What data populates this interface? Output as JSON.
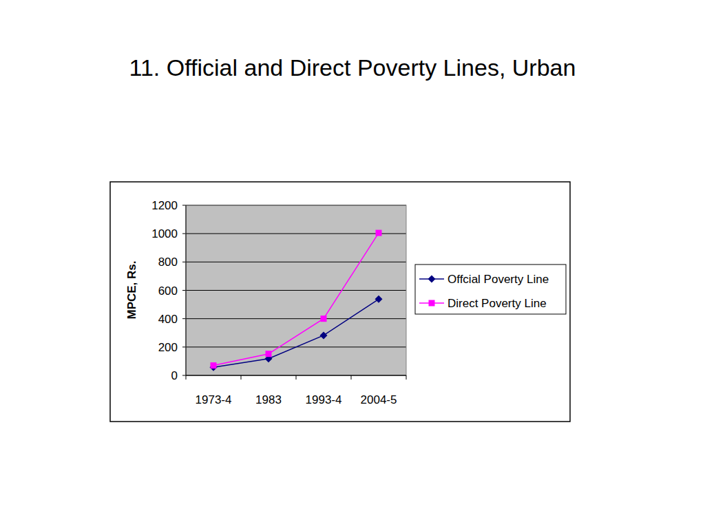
{
  "chart_data": {
    "type": "line",
    "title": "11. Official and Direct Poverty Lines, Urban",
    "y_label": "MPCE, Rs.",
    "categories": [
      "1973-4",
      "1983",
      "1993-4",
      "2004-5"
    ],
    "series": [
      {
        "name": "Offcial Poverty Line",
        "color": "#000080",
        "marker": "diamond",
        "values": [
          57,
          118,
          282,
          538
        ]
      },
      {
        "name": "Direct Poverty Line",
        "color": "#ff00ff",
        "marker": "square",
        "values": [
          70,
          152,
          400,
          1005
        ]
      }
    ],
    "ylim": [
      0,
      1200
    ],
    "yticks": [
      0,
      200,
      400,
      600,
      800,
      1000,
      1200
    ],
    "grid": true,
    "legend": "right"
  }
}
